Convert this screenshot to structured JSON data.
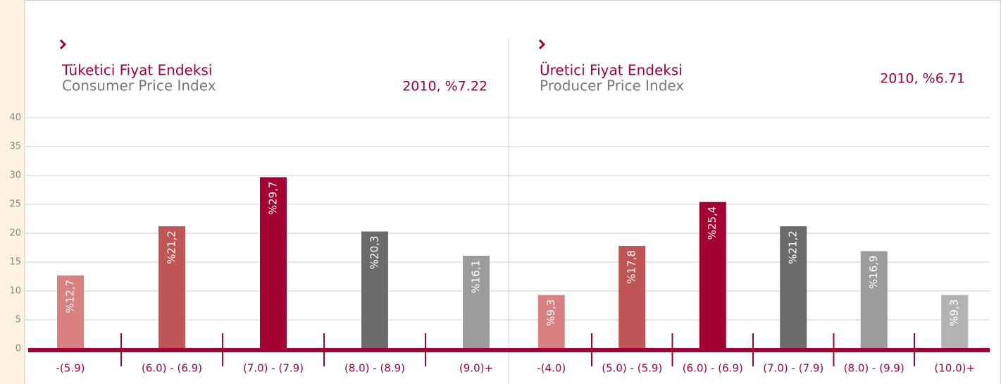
{
  "chart_data": [
    {
      "type": "bar",
      "title": "Tüketici Fiyat Endeksi",
      "subtitle": "Consumer Price Index",
      "annotation": "2010, %7.22",
      "categories": [
        "-(5.9)",
        "(6.0) - (6.9)",
        "(7.0) - (7.9)",
        "(8.0) - (8.9)",
        "(9.0)+"
      ],
      "values": [
        12.7,
        21.2,
        29.7,
        20.3,
        16.1
      ],
      "value_labels": [
        "%12,7",
        "%21,2",
        "%29,7",
        "%20,3",
        "%16,1"
      ],
      "colors": [
        "#d98080",
        "#c05555",
        "#a50034",
        "#6b6b6e",
        "#9c9c9e"
      ],
      "ylim": [
        0,
        40
      ],
      "yticks": [
        0,
        5,
        10,
        15,
        20,
        25,
        30,
        35,
        40
      ],
      "grid": true
    },
    {
      "type": "bar",
      "title": "Üretici Fiyat Endeksi",
      "subtitle": "Producer Price Index",
      "annotation": "2010, %6.71",
      "categories": [
        "-(4.0)",
        "(5.0) - (5.9)",
        "(6.0) - (6.9)",
        "(7.0) - (7.9)",
        "(8.0) - (9.9)",
        "(10.0)+"
      ],
      "values": [
        9.3,
        17.8,
        25.4,
        21.2,
        16.9,
        9.3
      ],
      "value_labels": [
        "%9,3",
        "%17,8",
        "%25,4",
        "%21,2",
        "%16,9",
        "%9,3"
      ],
      "colors": [
        "#d98080",
        "#c05555",
        "#a50034",
        "#6b6b6e",
        "#9c9c9e",
        "#b3b3b5"
      ],
      "ylim": [
        0,
        40
      ]
    }
  ]
}
